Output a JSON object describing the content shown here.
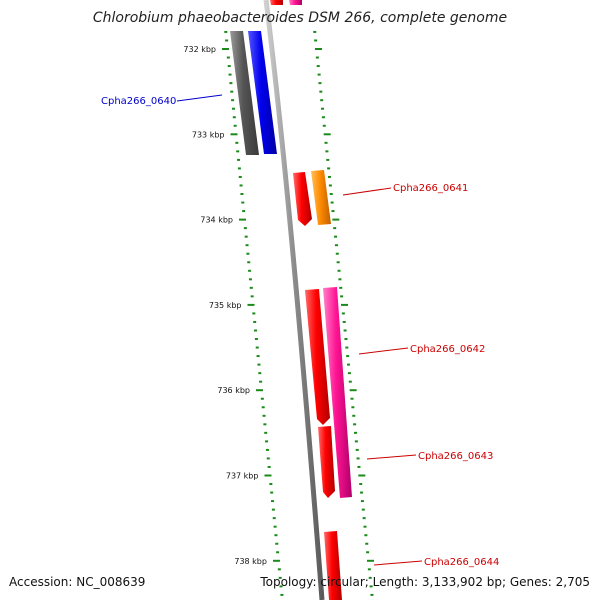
{
  "title": "Chlorobium phaeobacteroides DSM 266, complete genome",
  "footer": {
    "accession": "Accession: NC_008639",
    "summary": "Topology: circular; Length: 3,133,902 bp; Genes: 2,705"
  },
  "ticks": [
    {
      "label": "732 kbp",
      "kbp": 732
    },
    {
      "label": "733 kbp",
      "kbp": 733
    },
    {
      "label": "734 kbp",
      "kbp": 734
    },
    {
      "label": "735 kbp",
      "kbp": 735
    },
    {
      "label": "736 kbp",
      "kbp": 736
    },
    {
      "label": "737 kbp",
      "kbp": 737
    },
    {
      "label": "738 kbp",
      "kbp": 738
    }
  ],
  "gene_labels": [
    {
      "name": "Cpha266_0640",
      "color": "#0000cc"
    },
    {
      "name": "Cpha266_0641",
      "color": "#cc0000"
    },
    {
      "name": "Cpha266_0642",
      "color": "#cc0000"
    },
    {
      "name": "Cpha266_0643",
      "color": "#cc0000"
    },
    {
      "name": "Cpha266_0644",
      "color": "#cc0000"
    }
  ],
  "colors": {
    "backbone": "#8c8c8c",
    "ticks": "#1a8a1a",
    "gray_feature": "#666666",
    "blue_feature": "#0000ee",
    "red_feature": "#ff0000",
    "orange_feature": "#ff8c00",
    "pink_feature": "#ff1493"
  }
}
